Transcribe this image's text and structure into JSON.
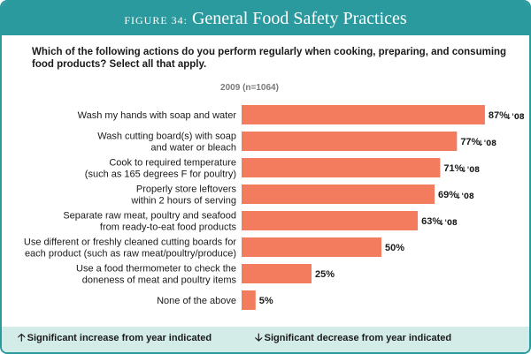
{
  "header": {
    "figure_label": "FIGURE 34:",
    "title": "General Food Safety Practices"
  },
  "question": "Which of the following actions do you perform regularly when cooking, preparing, and consuming food products? Select all that apply.",
  "year_label": "2009 (n=1064)",
  "legend": {
    "increase": "Significant increase from year indicated",
    "decrease": "Significant decrease from year indicated",
    "increase_icon": "up-arrow-icon",
    "decrease_icon": "down-arrow-icon"
  },
  "colors": {
    "header": "#2a9a9e",
    "bar": "#f47c5e",
    "footer": "#d3ece8"
  },
  "chart_data": {
    "type": "bar",
    "orientation": "horizontal",
    "title": "General Food Safety Practices",
    "xlim": [
      0,
      100
    ],
    "grid": false,
    "categories": [
      [
        "Wash my hands with soap and water"
      ],
      [
        "Wash cutting board(s) with soap",
        "and water or bleach"
      ],
      [
        "Cook to required temperature",
        "(such as 165 degrees F for poultry)"
      ],
      [
        "Properly store leftovers",
        "within 2 hours of serving"
      ],
      [
        "Separate raw meat, poultry and seafood",
        "from ready-to-eat food products"
      ],
      [
        "Use different or freshly cleaned cutting boards for",
        "each product (such as raw meat/poultry/produce)"
      ],
      [
        "Use a food thermometer to check the",
        "doneness of meat and poultry items"
      ],
      [
        "None of the above"
      ]
    ],
    "series": [
      {
        "name": "2009 (n=1064)",
        "values": [
          87,
          77,
          71,
          69,
          63,
          50,
          25,
          5
        ]
      }
    ],
    "value_labels": [
      "87%",
      "77%",
      "71%",
      "69%",
      "63%",
      "50%",
      "25%",
      "5%"
    ],
    "annotations": [
      "↓'08",
      "↓'08",
      "↓'08",
      "↓'08",
      "↓'08",
      "",
      "",
      ""
    ]
  }
}
